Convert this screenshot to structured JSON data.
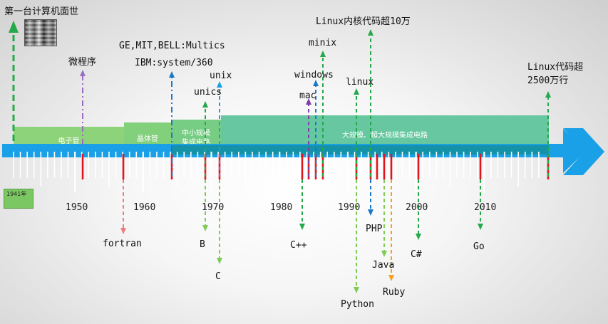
{
  "top_events": [
    {
      "id": "first-computer",
      "text": "第一台计算机面世"
    },
    {
      "id": "microprogram",
      "text": "微程序"
    },
    {
      "id": "multics",
      "text": "GE,MIT,BELL:Multics"
    },
    {
      "id": "ibm360",
      "text": "IBM:system/360"
    },
    {
      "id": "unix",
      "text": "unix"
    },
    {
      "id": "unics",
      "text": "unics"
    },
    {
      "id": "mac",
      "text": "mac"
    },
    {
      "id": "windows",
      "text": "windows"
    },
    {
      "id": "minix",
      "text": "minix"
    },
    {
      "id": "linux",
      "text": "linux"
    },
    {
      "id": "linux-100k",
      "text": "Linux内核代码超10万"
    },
    {
      "id": "linux-25m-a",
      "text": "Linux代码超"
    },
    {
      "id": "linux-25m-b",
      "text": "2500万行"
    }
  ],
  "bottom_events": [
    {
      "id": "fortran",
      "text": "fortran"
    },
    {
      "id": "b",
      "text": "B"
    },
    {
      "id": "c",
      "text": "C"
    },
    {
      "id": "cpp",
      "text": "C++"
    },
    {
      "id": "python",
      "text": "Python"
    },
    {
      "id": "php",
      "text": "PHP"
    },
    {
      "id": "java",
      "text": "Java"
    },
    {
      "id": "ruby",
      "text": "Ruby"
    },
    {
      "id": "csharp",
      "text": "C#"
    },
    {
      "id": "go",
      "text": "Go"
    }
  ],
  "eras": [
    {
      "id": "vacuum",
      "text": "电子管"
    },
    {
      "id": "transistor",
      "text": "晶体管"
    },
    {
      "id": "msi",
      "text": "中小规模集成电路"
    },
    {
      "id": "lsi",
      "text": "大规模、超大规模集成电路"
    }
  ],
  "years": [
    "1950",
    "1960",
    "1970",
    "1980",
    "1990",
    "2000",
    "2010"
  ],
  "start_badge": "1941年",
  "colors": {
    "axis": "#1aa0e6",
    "axis_dark": "#138fb2",
    "era_light": "#8dd37a",
    "era_mid": "#6dc98a",
    "era_big": "#66c7a0",
    "tick_red": "#e1141d",
    "green": "#25a94a",
    "purple": "#9b6cc4",
    "blue": "#1c77c9",
    "orange": "#f6a11f",
    "pink": "#f07b7b",
    "lightgreen": "#7ecb55"
  }
}
